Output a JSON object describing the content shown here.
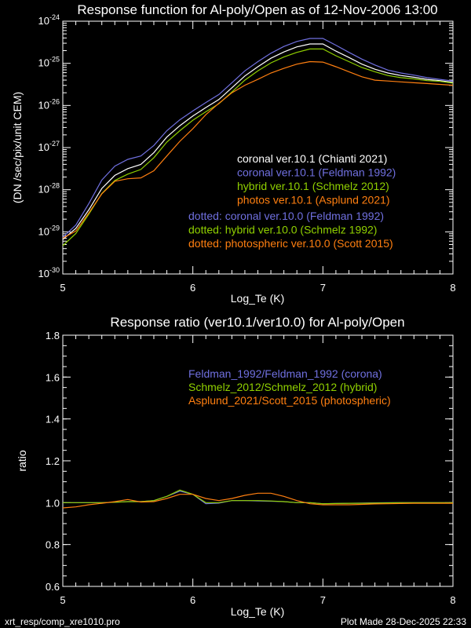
{
  "colors": {
    "background": "#000000",
    "axes": "#ffffff",
    "white": "#ffffff",
    "blue": "#7070e0",
    "green": "#90d000",
    "orange": "#ff7f10"
  },
  "footer": {
    "left": "xrt_resp/comp_xre1010.pro",
    "right": "Plot Made 28-Dec-2025 22:33"
  },
  "chart_data": [
    {
      "type": "line",
      "title": "Response function for Al-poly/Open as of 12-Nov-2006 13:00",
      "xlabel": "Log_Te (K)",
      "ylabel": "(DN /sec/pix/unit CEM)",
      "xlim": [
        5,
        8
      ],
      "ylim": [
        1e-30,
        1e-24
      ],
      "yscale": "log",
      "xticks": [
        "5",
        "6",
        "7",
        "8"
      ],
      "yticks": [
        {
          "base": "10",
          "exp": "-30"
        },
        {
          "base": "10",
          "exp": "-29"
        },
        {
          "base": "10",
          "exp": "-28"
        },
        {
          "base": "10",
          "exp": "-27"
        },
        {
          "base": "10",
          "exp": "-26"
        },
        {
          "base": "10",
          "exp": "-25"
        },
        {
          "base": "10",
          "exp": "-24"
        }
      ],
      "legend_placement": "center-right",
      "x": [
        5.0,
        5.1,
        5.2,
        5.3,
        5.4,
        5.5,
        5.6,
        5.7,
        5.8,
        5.9,
        6.0,
        6.1,
        6.2,
        6.3,
        6.4,
        6.5,
        6.6,
        6.7,
        6.8,
        6.9,
        7.0,
        7.1,
        7.2,
        7.3,
        7.4,
        7.5,
        7.6,
        7.7,
        7.8,
        7.9,
        8.0
      ],
      "y_unit": "log10 of response",
      "series": [
        {
          "name": "coronal ver.10.1 (Chianti 2021)",
          "color": "#ffffff",
          "style": "solid",
          "values": [
            -29.18,
            -28.92,
            -28.48,
            -27.97,
            -27.66,
            -27.5,
            -27.4,
            -27.12,
            -26.75,
            -26.48,
            -26.25,
            -26.05,
            -25.86,
            -25.58,
            -25.3,
            -25.08,
            -24.88,
            -24.73,
            -24.61,
            -24.54,
            -24.54,
            -24.71,
            -24.86,
            -25.02,
            -25.14,
            -25.23,
            -25.29,
            -25.33,
            -25.38,
            -25.41,
            -25.45
          ]
        },
        {
          "name": "coronal ver.10.1 (Feldman 1992)",
          "color": "#7070e0",
          "style": "solid",
          "values": [
            -29.13,
            -28.84,
            -28.33,
            -27.77,
            -27.44,
            -27.28,
            -27.2,
            -26.95,
            -26.6,
            -26.34,
            -26.13,
            -25.93,
            -25.74,
            -25.46,
            -25.18,
            -24.96,
            -24.76,
            -24.6,
            -24.48,
            -24.41,
            -24.41,
            -24.57,
            -24.74,
            -24.9,
            -25.04,
            -25.16,
            -25.23,
            -25.28,
            -25.34,
            -25.38,
            -25.42
          ]
        },
        {
          "name": "hybrid ver.10.1 (Schmelz 2012)",
          "color": "#90d000",
          "style": "solid",
          "values": [
            -29.33,
            -29.04,
            -28.58,
            -28.09,
            -27.78,
            -27.63,
            -27.52,
            -27.24,
            -26.87,
            -26.6,
            -26.35,
            -26.15,
            -25.96,
            -25.68,
            -25.4,
            -25.18,
            -24.99,
            -24.85,
            -24.74,
            -24.66,
            -24.66,
            -24.82,
            -24.96,
            -25.1,
            -25.2,
            -25.29,
            -25.34,
            -25.37,
            -25.41,
            -25.43,
            -25.47
          ]
        },
        {
          "name": "photos ver.10.1 (Asplund 2021)",
          "color": "#ff7f10",
          "style": "solid",
          "values": [
            -29.15,
            -28.98,
            -28.55,
            -28.1,
            -27.8,
            -27.74,
            -27.72,
            -27.55,
            -27.2,
            -26.85,
            -26.55,
            -26.22,
            -25.95,
            -25.7,
            -25.52,
            -25.38,
            -25.23,
            -25.12,
            -25.02,
            -24.96,
            -24.97,
            -25.08,
            -25.2,
            -25.32,
            -25.4,
            -25.42,
            -25.44,
            -25.46,
            -25.48,
            -25.5,
            -25.52
          ]
        }
      ],
      "legend": [
        {
          "text": "coronal ver.10.1 (Chianti 2021)",
          "color": "#ffffff"
        },
        {
          "text": "coronal ver.10.1 (Feldman 1992)",
          "color": "#7070e0"
        },
        {
          "text": "hybrid ver.10.1 (Schmelz 2012)",
          "color": "#90d000"
        },
        {
          "text": "photos ver.10.1 (Asplund 2021)",
          "color": "#ff7f10"
        },
        {
          "text": "dotted: coronal ver.10.0 (Feldman 1992)",
          "color": "#7070e0"
        },
        {
          "text": "dotted: hybrid ver.10.0 (Schmelz 1992)",
          "color": "#90d000"
        },
        {
          "text": "dotted: photospheric ver.10.0 (Scott 2015)",
          "color": "#ff7f10"
        }
      ]
    },
    {
      "type": "line",
      "title": "Response ratio (ver10.1/ver10.0) for Al-poly/Open",
      "xlabel": "Log_Te (K)",
      "ylabel": "ratio",
      "xlim": [
        5,
        8
      ],
      "ylim": [
        0.6,
        1.8
      ],
      "xticks": [
        "5",
        "6",
        "7",
        "8"
      ],
      "yticks": [
        "0.6",
        "0.8",
        "1.0",
        "1.2",
        "1.4",
        "1.6",
        "1.8"
      ],
      "legend_placement": "upper-right",
      "x": [
        5.0,
        5.1,
        5.2,
        5.3,
        5.4,
        5.5,
        5.6,
        5.7,
        5.8,
        5.9,
        6.0,
        6.1,
        6.2,
        6.3,
        6.4,
        6.5,
        6.6,
        6.7,
        6.8,
        6.9,
        7.0,
        7.1,
        7.2,
        7.3,
        7.4,
        7.5,
        7.6,
        7.7,
        7.8,
        7.9,
        8.0
      ],
      "series": [
        {
          "name": "Feldman_1992/Feldman_1992 (corona)",
          "color": "#7070e0",
          "values": [
            1.0,
            1.0,
            1.0,
            1.0,
            1.002,
            1.005,
            1.005,
            1.01,
            1.03,
            1.055,
            1.04,
            0.995,
            0.998,
            1.01,
            1.01,
            1.008,
            1.007,
            1.005,
            1.0,
            1.0,
            0.995,
            0.996,
            0.997,
            0.998,
            0.999,
            1.0,
            1.0,
            1.0,
            1.0,
            1.0,
            1.0
          ]
        },
        {
          "name": "Schmelz_2012/Schmelz_2012 (hybrid)",
          "color": "#90d000",
          "values": [
            1.0,
            1.0,
            1.0,
            1.0,
            1.002,
            1.005,
            1.005,
            1.01,
            1.03,
            1.06,
            1.04,
            1.0,
            1.0,
            1.01,
            1.01,
            1.01,
            1.008,
            1.005,
            1.0,
            1.0,
            0.995,
            0.996,
            0.997,
            0.997,
            0.998,
            0.999,
            1.0,
            1.0,
            1.0,
            1.0,
            1.0
          ]
        },
        {
          "name": "Asplund_2021/Scott_2015 (photospheric)",
          "color": "#ff7f10",
          "values": [
            0.975,
            0.98,
            0.99,
            0.997,
            1.005,
            1.015,
            1.003,
            1.005,
            1.02,
            1.04,
            1.04,
            1.02,
            1.01,
            1.02,
            1.035,
            1.045,
            1.045,
            1.03,
            1.01,
            0.995,
            0.99,
            0.99,
            0.99,
            0.992,
            0.994,
            0.995,
            0.996,
            0.997,
            0.997,
            0.997,
            0.997
          ]
        }
      ],
      "legend": [
        {
          "text": "Feldman_1992/Feldman_1992 (corona)",
          "color": "#7070e0"
        },
        {
          "text": "Schmelz_2012/Schmelz_2012 (hybrid)",
          "color": "#90d000"
        },
        {
          "text": "Asplund_2021/Scott_2015 (photospheric)",
          "color": "#ff7f10"
        }
      ]
    }
  ]
}
